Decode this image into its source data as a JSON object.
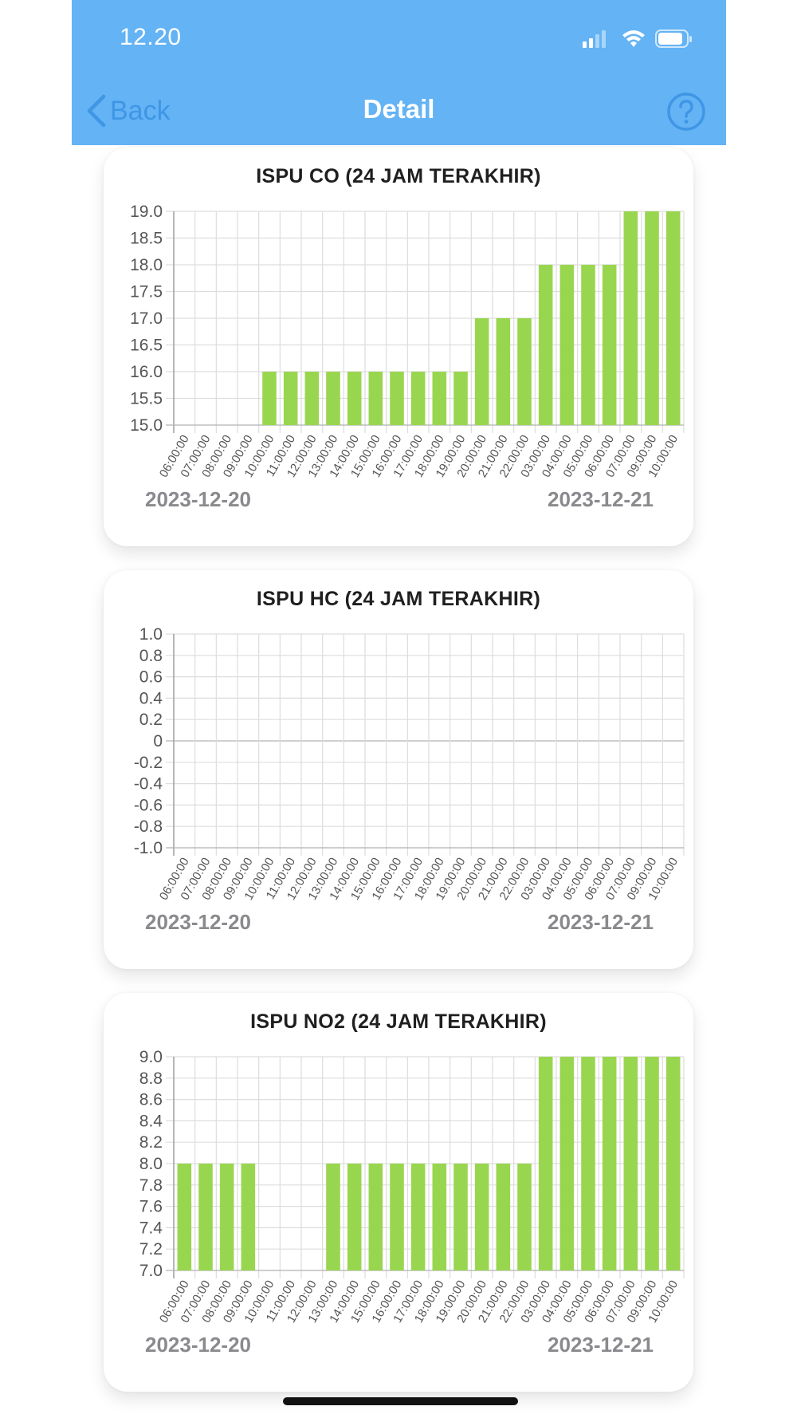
{
  "status_bar": {
    "time": "12.20"
  },
  "navbar": {
    "back_label": "Back",
    "title": "Detail"
  },
  "colors": {
    "nav_bg": "#63b3f5",
    "back_blue": "#3f96e5",
    "bar_green": "#99d64f",
    "grid": "#dddddd"
  },
  "chart_data": [
    {
      "type": "bar",
      "title": "ISPU CO (24 JAM TERAKHIR)",
      "categories": [
        "06:00:00",
        "07:00:00",
        "08:00:00",
        "09:00:00",
        "10:00:00",
        "11:00:00",
        "12:00:00",
        "13:00:00",
        "14:00:00",
        "15:00:00",
        "16:00:00",
        "17:00:00",
        "18:00:00",
        "19:00:00",
        "20:00:00",
        "21:00:00",
        "22:00:00",
        "03:00:00",
        "04:00:00",
        "05:00:00",
        "06:00:00",
        "07:00:00",
        "09:00:00",
        "10:00:00"
      ],
      "values": [
        15,
        15,
        15,
        15,
        16,
        16,
        16,
        16,
        16,
        16,
        16,
        16,
        16,
        16,
        17,
        17,
        17,
        18,
        18,
        18,
        18,
        19,
        19,
        19
      ],
      "ylim": [
        15,
        19
      ],
      "yticks": [
        "15.0",
        "15.5",
        "16.0",
        "16.5",
        "17.0",
        "17.5",
        "18.0",
        "18.5",
        "19.0"
      ],
      "grid": true,
      "date_left": "2023-12-20",
      "date_right": "2023-12-21"
    },
    {
      "type": "bar",
      "title": "ISPU HC (24 JAM TERAKHIR)",
      "categories": [
        "06:00:00",
        "07:00:00",
        "08:00:00",
        "09:00:00",
        "10:00:00",
        "11:00:00",
        "12:00:00",
        "13:00:00",
        "14:00:00",
        "15:00:00",
        "16:00:00",
        "17:00:00",
        "18:00:00",
        "19:00:00",
        "20:00:00",
        "21:00:00",
        "22:00:00",
        "03:00:00",
        "04:00:00",
        "05:00:00",
        "06:00:00",
        "07:00:00",
        "09:00:00",
        "10:00:00"
      ],
      "values": [
        0,
        0,
        0,
        0,
        0,
        0,
        0,
        0,
        0,
        0,
        0,
        0,
        0,
        0,
        0,
        0,
        0,
        0,
        0,
        0,
        0,
        0,
        0,
        0
      ],
      "ylim": [
        -1,
        1
      ],
      "yticks": [
        "-1.0",
        "-0.8",
        "-0.6",
        "-0.4",
        "-0.2",
        "0",
        "0.2",
        "0.4",
        "0.6",
        "0.8",
        "1.0"
      ],
      "grid": true,
      "date_left": "2023-12-20",
      "date_right": "2023-12-21"
    },
    {
      "type": "bar",
      "title": "ISPU NO2 (24 JAM TERAKHIR)",
      "categories": [
        "06:00:00",
        "07:00:00",
        "08:00:00",
        "09:00:00",
        "10:00:00",
        "11:00:00",
        "12:00:00",
        "13:00:00",
        "14:00:00",
        "15:00:00",
        "16:00:00",
        "17:00:00",
        "18:00:00",
        "19:00:00",
        "20:00:00",
        "21:00:00",
        "22:00:00",
        "03:00:00",
        "04:00:00",
        "05:00:00",
        "06:00:00",
        "07:00:00",
        "09:00:00",
        "10:00:00"
      ],
      "values": [
        8,
        8,
        8,
        8,
        7,
        7,
        7,
        8,
        8,
        8,
        8,
        8,
        8,
        8,
        8,
        8,
        8,
        9,
        9,
        9,
        9,
        9,
        9,
        9
      ],
      "ylim": [
        7,
        9
      ],
      "yticks": [
        "7.0",
        "7.2",
        "7.4",
        "7.6",
        "7.8",
        "8.0",
        "8.2",
        "8.4",
        "8.6",
        "8.8",
        "9.0"
      ],
      "grid": true,
      "date_left": "2023-12-20",
      "date_right": "2023-12-21"
    }
  ]
}
